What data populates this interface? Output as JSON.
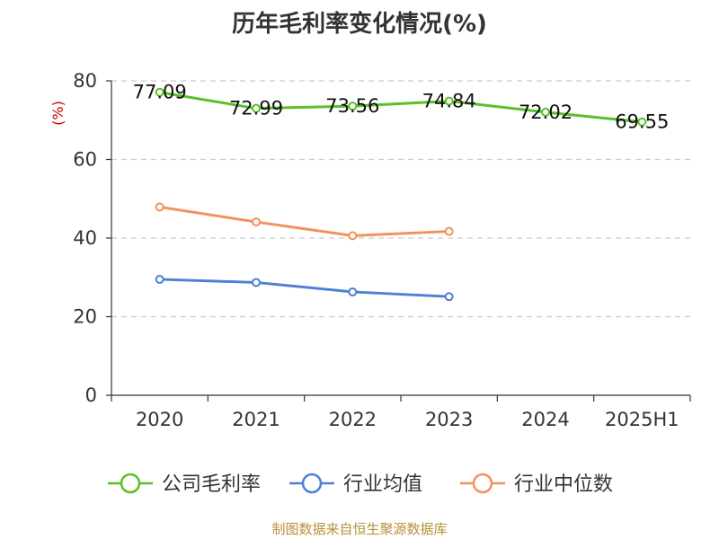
{
  "chart_data": {
    "type": "line",
    "title": "历年毛利率变化情况(%)",
    "ylabel": "(%)",
    "ylim": [
      0,
      80
    ],
    "yticks": [
      0,
      20,
      40,
      60,
      80
    ],
    "categories": [
      "2020",
      "2021",
      "2022",
      "2023",
      "2024",
      "2025H1"
    ],
    "series": [
      {
        "name": "公司毛利率",
        "color": "#5cbf27",
        "values": [
          77.09,
          72.99,
          73.56,
          74.84,
          72.02,
          69.55
        ],
        "labels": [
          "77.09",
          "72.99",
          "73.56",
          "74.84",
          "72.02",
          "69.55"
        ]
      },
      {
        "name": "行业均值",
        "color": "#4f7fd6",
        "values": [
          29.5,
          28.7,
          26.3,
          25.1,
          null,
          null
        ]
      },
      {
        "name": "行业中位数",
        "color": "#f3915c",
        "values": [
          47.9,
          44.1,
          40.6,
          41.7,
          null,
          null
        ]
      }
    ],
    "grid": true,
    "legend_position": "bottom"
  },
  "colors": {
    "ylabel": "#cc0000",
    "source": "#b8903a"
  },
  "source": "制图数据来自恒生聚源数据库"
}
